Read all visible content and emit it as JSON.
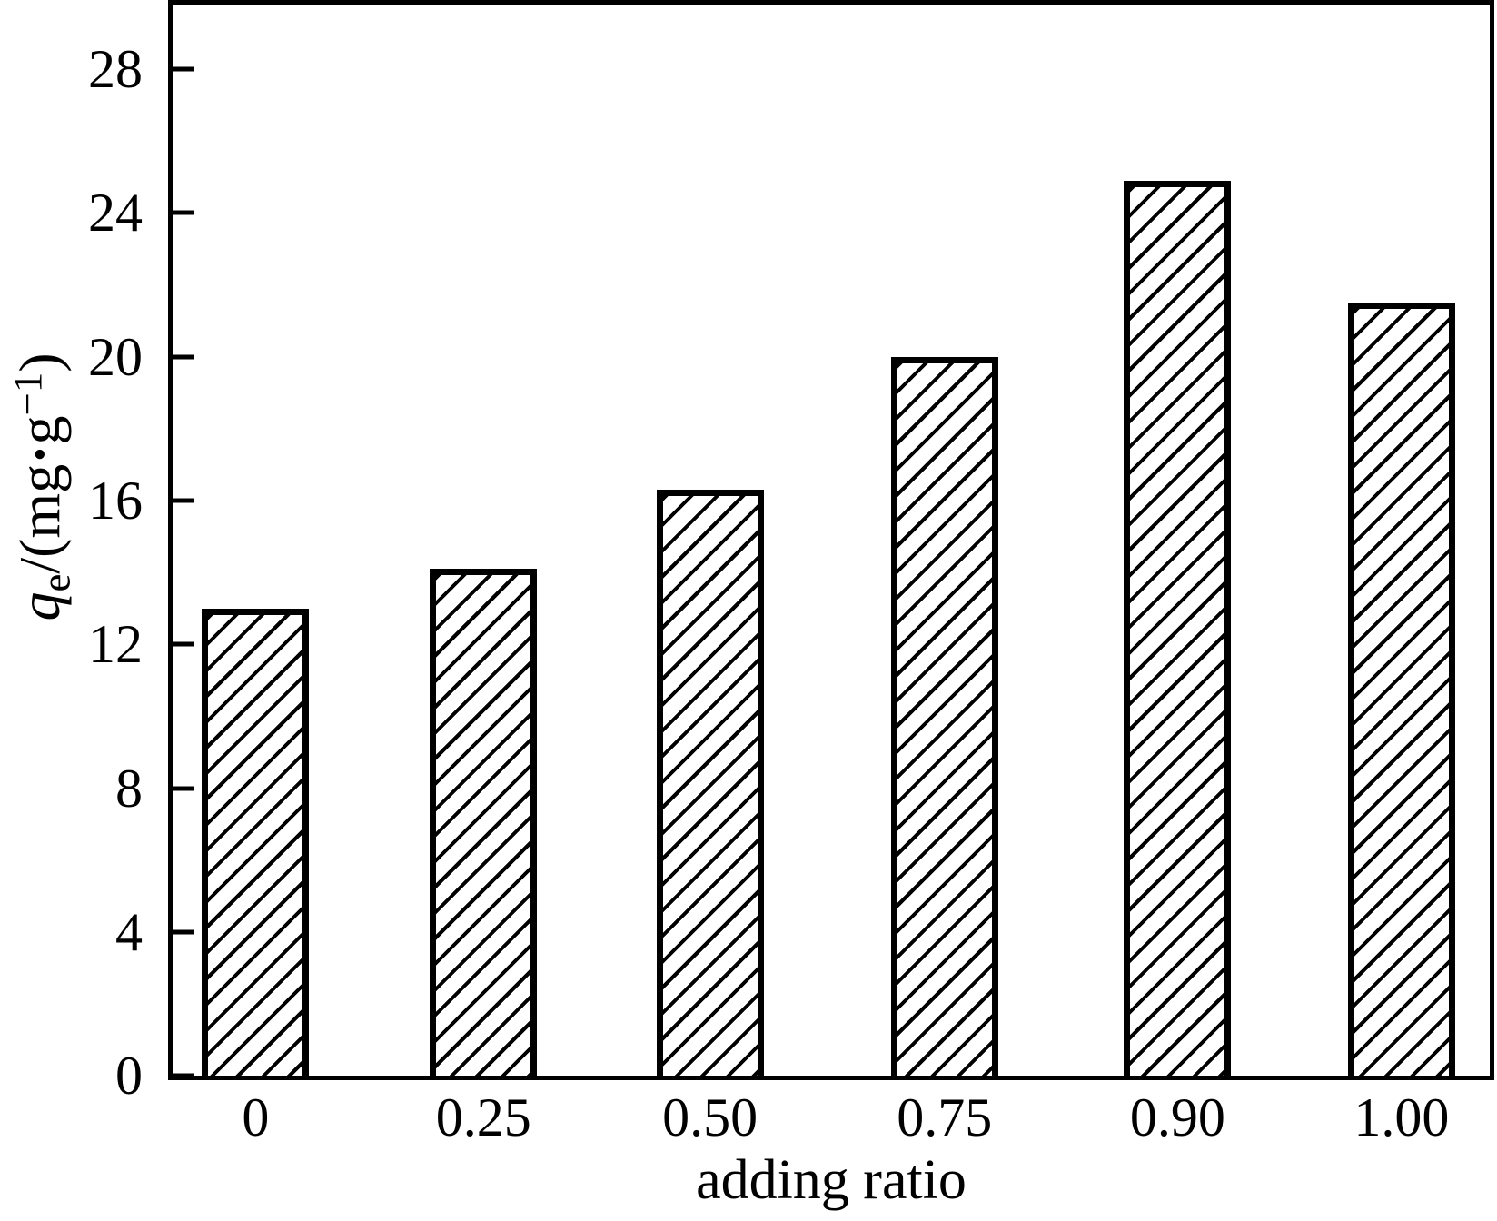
{
  "figure": {
    "background": "#ffffff",
    "ink_color": "#000000"
  },
  "chart_data": {
    "type": "bar",
    "title": "",
    "categories": [
      "0",
      "0.25",
      "0.50",
      "0.75",
      "0.90",
      "1.00"
    ],
    "values": [
      13.0,
      14.1,
      16.3,
      20.0,
      24.9,
      21.5
    ],
    "xlabel": "adding ratio",
    "ylabel": "qe/(mg·g⁻¹)",
    "ylabel_parts": {
      "symbol": "q",
      "subscript": "e",
      "divider": "/(mg",
      "dot": "·",
      "unit2": "g",
      "superscript": "−1",
      "close": ")"
    },
    "yticks": [
      0,
      4,
      8,
      12,
      16,
      20,
      24,
      28
    ],
    "ylim": [
      0,
      29.8
    ],
    "grid": false,
    "legend": false,
    "bar_style": {
      "fill": "#ffffff",
      "hatch": "diagonal-forward-slash",
      "hatch_color": "#000000",
      "border_color": "#000000"
    }
  }
}
